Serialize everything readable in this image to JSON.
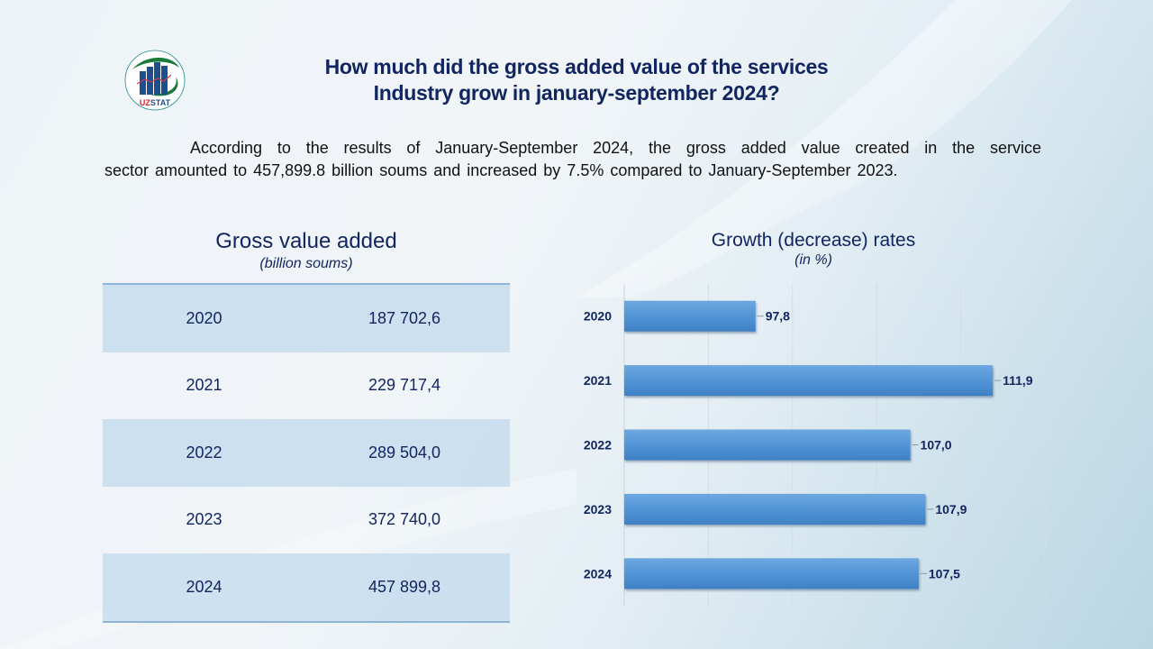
{
  "header": {
    "logo_text": "UZSTAT",
    "title_line1": "How much did the gross added value of the services",
    "title_line2": "Industry grow in january-september 2024?"
  },
  "summary": {
    "line1": "According to the results of January-September 2024, the gross added value created in the service",
    "line2": "sector amounted  to 457,899.8 billion soums and increased by 7.5% compared to January-September  2023."
  },
  "table": {
    "title": "Gross value added",
    "subtitle": "(billion soums)",
    "rows": [
      {
        "year": "2020",
        "value": "187 702,6"
      },
      {
        "year": "2021",
        "value": "229 717,4"
      },
      {
        "year": "2022",
        "value": "289 504,0"
      },
      {
        "year": "2023",
        "value": "372 740,0"
      },
      {
        "year": "2024",
        "value": "457 899,8"
      }
    ]
  },
  "colors": {
    "title": "#112660",
    "bar": "#4a8fd4",
    "table_shade": "#c9dded",
    "table_rule": "#8eb4d8"
  },
  "chart_data": {
    "type": "bar",
    "orientation": "horizontal",
    "title": "Growth (decrease) rates",
    "subtitle": "(in %)",
    "categories": [
      "2020",
      "2021",
      "2022",
      "2023",
      "2024"
    ],
    "values": [
      97.8,
      111.9,
      107.0,
      107.9,
      107.5
    ],
    "data_labels": [
      "97,8",
      "111,9",
      "107,0",
      "107,9",
      "107,5"
    ],
    "xlim": [
      90,
      115
    ],
    "x_tick_step": 5,
    "grid": "vertical",
    "xlabel": "",
    "ylabel": "",
    "legend": "none"
  }
}
